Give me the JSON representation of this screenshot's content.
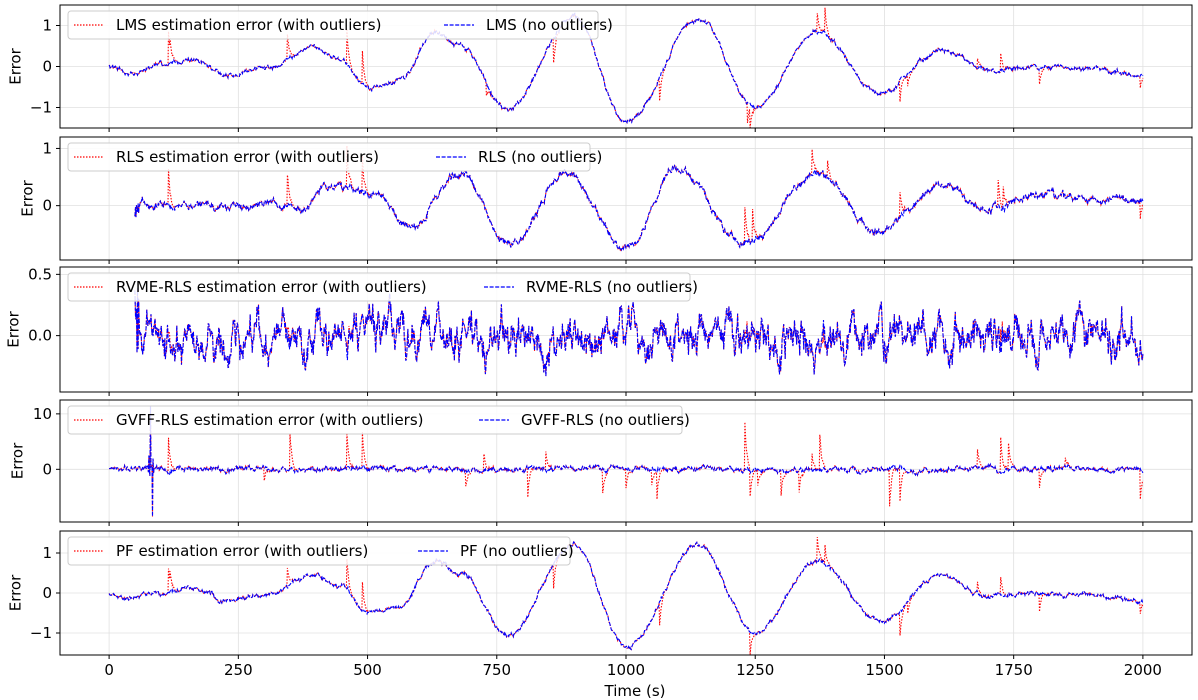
{
  "chart_data": [
    {
      "type": "line",
      "ylabel": "Error",
      "xlim": [
        -95,
        2095
      ],
      "ylim": [
        -1.5,
        1.5
      ],
      "yticks": [
        -1,
        0,
        1
      ],
      "ytick_labels": [
        "−1",
        "0",
        "1"
      ],
      "start": 0,
      "legend": "upper-left",
      "legend_layout": "two-column",
      "series": [
        {
          "name": "LMS estimation error (with outliers)",
          "color": "#ff0000",
          "style": "dotted"
        },
        {
          "name": "LMS (no outliers)",
          "color": "#0000ff",
          "style": "dashed"
        }
      ],
      "signal_keypoints": [
        [
          0,
          0
        ],
        [
          40,
          -0.15
        ],
        [
          100,
          0.05
        ],
        [
          160,
          0.15
        ],
        [
          230,
          -0.2
        ],
        [
          300,
          -0.05
        ],
        [
          400,
          0.45
        ],
        [
          450,
          0.15
        ],
        [
          500,
          -0.5
        ],
        [
          560,
          -0.35
        ],
        [
          630,
          0.8
        ],
        [
          680,
          0.5
        ],
        [
          770,
          -1.05
        ],
        [
          900,
          1.2
        ],
        [
          1000,
          -1.35
        ],
        [
          1140,
          1.15
        ],
        [
          1250,
          -1.0
        ],
        [
          1370,
          0.85
        ],
        [
          1490,
          -0.65
        ],
        [
          1610,
          0.4
        ],
        [
          1700,
          -0.1
        ],
        [
          1800,
          0.0
        ],
        [
          1900,
          -0.05
        ],
        [
          2000,
          -0.2
        ]
      ],
      "noise_amplitude": 0.05,
      "outliers": [
        [
          115,
          0.8
        ],
        [
          118,
          0.6
        ],
        [
          345,
          0.6
        ],
        [
          460,
          0.85
        ],
        [
          490,
          0.8
        ],
        [
          730,
          -0.3
        ],
        [
          860,
          -0.6
        ],
        [
          1065,
          -0.6
        ],
        [
          1235,
          -0.5
        ],
        [
          1240,
          -0.6
        ],
        [
          1370,
          0.5
        ],
        [
          1385,
          0.6
        ],
        [
          1530,
          -0.55
        ],
        [
          1545,
          -0.3
        ],
        [
          1680,
          0.25
        ],
        [
          1725,
          0.4
        ],
        [
          1800,
          -0.4
        ],
        [
          1995,
          -0.3
        ]
      ]
    },
    {
      "type": "line",
      "ylabel": "Error",
      "xlim": [
        -95,
        2095
      ],
      "ylim": [
        -0.95,
        1.2
      ],
      "yticks": [
        0,
        1
      ],
      "ytick_labels": [
        "0",
        "1"
      ],
      "start": 50,
      "legend": "upper-left",
      "legend_layout": "two-column",
      "series": [
        {
          "name": "RLS estimation error (with outliers)",
          "color": "#ff0000",
          "style": "dotted"
        },
        {
          "name": "RLS (no outliers)",
          "color": "#0000ff",
          "style": "dashed"
        }
      ],
      "signal_keypoints": [
        [
          50,
          -0.1
        ],
        [
          70,
          0.1
        ],
        [
          100,
          0.0
        ],
        [
          160,
          0.0
        ],
        [
          250,
          -0.05
        ],
        [
          300,
          0.05
        ],
        [
          370,
          -0.1
        ],
        [
          420,
          0.35
        ],
        [
          520,
          0.2
        ],
        [
          580,
          -0.4
        ],
        [
          680,
          0.55
        ],
        [
          780,
          -0.7
        ],
        [
          880,
          0.6
        ],
        [
          1000,
          -0.75
        ],
        [
          1100,
          0.65
        ],
        [
          1230,
          -0.65
        ],
        [
          1370,
          0.55
        ],
        [
          1490,
          -0.45
        ],
        [
          1610,
          0.35
        ],
        [
          1700,
          -0.05
        ],
        [
          1800,
          0.2
        ],
        [
          1900,
          0.1
        ],
        [
          2000,
          0.1
        ]
      ],
      "noise_amplitude": 0.06,
      "outliers": [
        [
          115,
          0.6
        ],
        [
          345,
          0.55
        ],
        [
          460,
          0.7
        ],
        [
          490,
          0.6
        ],
        [
          1230,
          0.6
        ],
        [
          1245,
          0.55
        ],
        [
          1360,
          0.45
        ],
        [
          1390,
          0.3
        ],
        [
          1530,
          0.45
        ],
        [
          1720,
          0.45
        ],
        [
          1730,
          0.4
        ],
        [
          1995,
          -0.3
        ]
      ]
    },
    {
      "type": "line",
      "ylabel": "Error",
      "xlim": [
        -95,
        2095
      ],
      "ylim": [
        -0.46,
        0.56
      ],
      "yticks": [
        0.0,
        0.5
      ],
      "ytick_labels": [
        "0.0",
        "0.5"
      ],
      "start": 50,
      "legend": "upper-left",
      "legend_layout": "two-column",
      "series": [
        {
          "name": "RVME-RLS estimation error (with outliers)",
          "color": "#ff0000",
          "style": "dotted"
        },
        {
          "name": "RVME-RLS (no outliers)",
          "color": "#0000ff",
          "style": "dashed"
        }
      ],
      "signal_keypoints": [
        [
          50,
          0
        ],
        [
          2000,
          0
        ]
      ],
      "noise_amplitude": 0.14,
      "outliers": [
        [
          115,
          0.08
        ],
        [
          345,
          0.1
        ],
        [
          460,
          0.1
        ],
        [
          1230,
          0.1
        ],
        [
          1380,
          -0.1
        ],
        [
          1725,
          0.1
        ]
      ]
    },
    {
      "type": "line",
      "ylabel": "Error",
      "xlim": [
        -95,
        2095
      ],
      "ylim": [
        -9.5,
        12.5
      ],
      "yticks": [
        0,
        10
      ],
      "ytick_labels": [
        "0",
        "10"
      ],
      "start": 0,
      "legend": "upper-left",
      "legend_layout": "two-column",
      "series": [
        {
          "name": "GVFF-RLS estimation error (with outliers)",
          "color": "#ff0000",
          "style": "dotted"
        },
        {
          "name": "GVFF-RLS (no outliers)",
          "color": "#0000ff",
          "style": "dashed"
        }
      ],
      "signal_keypoints": [
        [
          0,
          0
        ],
        [
          2000,
          0
        ]
      ],
      "noise_amplitude": 0.4,
      "transient": [
        [
          80,
          11.5
        ],
        [
          84,
          -8.5
        ]
      ],
      "outliers": [
        [
          115,
          6.5
        ],
        [
          300,
          -2.5
        ],
        [
          350,
          6.5
        ],
        [
          460,
          6.3
        ],
        [
          490,
          6.2
        ],
        [
          690,
          -3.0
        ],
        [
          725,
          3.0
        ],
        [
          810,
          -5.0
        ],
        [
          845,
          3.5
        ],
        [
          955,
          -4.5
        ],
        [
          1000,
          -3.5
        ],
        [
          1050,
          -3.0
        ],
        [
          1060,
          -5.0
        ],
        [
          1230,
          8.5
        ],
        [
          1240,
          -4.5
        ],
        [
          1255,
          -3.0
        ],
        [
          1300,
          -4.5
        ],
        [
          1335,
          -4.0
        ],
        [
          1360,
          3.0
        ],
        [
          1375,
          6.5
        ],
        [
          1510,
          -7.0
        ],
        [
          1530,
          -6.5
        ],
        [
          1680,
          3.5
        ],
        [
          1725,
          6.5
        ],
        [
          1740,
          5.0
        ],
        [
          1800,
          -3.5
        ],
        [
          1850,
          1.5
        ],
        [
          1995,
          -5.5
        ]
      ]
    },
    {
      "type": "line",
      "ylabel": "Error",
      "xlabel": "Time (s)",
      "xlim": [
        -95,
        2095
      ],
      "ylim": [
        -1.55,
        1.55
      ],
      "yticks": [
        -1,
        0,
        1
      ],
      "ytick_labels": [
        "−1",
        "0",
        "1"
      ],
      "xticks": [
        0,
        250,
        500,
        750,
        1000,
        1250,
        1500,
        1750,
        2000
      ],
      "xtick_labels": [
        "0",
        "250",
        "500",
        "750",
        "1000",
        "1250",
        "1500",
        "1750",
        "2000"
      ],
      "start": 0,
      "legend": "upper-left",
      "legend_layout": "two-column",
      "series": [
        {
          "name": "PF estimation error (with outliers)",
          "color": "#ff0000",
          "style": "dotted"
        },
        {
          "name": "PF (no outliers)",
          "color": "#0000ff",
          "style": "dashed"
        }
      ],
      "signal_keypoints": [
        [
          0,
          0
        ],
        [
          40,
          -0.15
        ],
        [
          100,
          0.05
        ],
        [
          160,
          0.15
        ],
        [
          230,
          -0.2
        ],
        [
          300,
          -0.05
        ],
        [
          400,
          0.45
        ],
        [
          450,
          0.15
        ],
        [
          500,
          -0.5
        ],
        [
          560,
          -0.35
        ],
        [
          630,
          0.8
        ],
        [
          680,
          0.5
        ],
        [
          770,
          -1.05
        ],
        [
          900,
          1.2
        ],
        [
          1000,
          -1.35
        ],
        [
          1140,
          1.2
        ],
        [
          1250,
          -1.0
        ],
        [
          1370,
          0.8
        ],
        [
          1490,
          -0.7
        ],
        [
          1610,
          0.4
        ],
        [
          1700,
          -0.1
        ],
        [
          1800,
          0.0
        ],
        [
          1900,
          -0.05
        ],
        [
          2000,
          -0.2
        ]
      ],
      "noise_amplitude": 0.05,
      "outliers": [
        [
          115,
          0.6
        ],
        [
          118,
          0.5
        ],
        [
          345,
          0.5
        ],
        [
          460,
          0.75
        ],
        [
          490,
          0.7
        ],
        [
          860,
          -0.6
        ],
        [
          1065,
          -0.6
        ],
        [
          1240,
          -0.55
        ],
        [
          1370,
          0.6
        ],
        [
          1385,
          0.5
        ],
        [
          1530,
          -0.6
        ],
        [
          1545,
          -0.3
        ],
        [
          1680,
          0.25
        ],
        [
          1725,
          0.45
        ],
        [
          1800,
          -0.4
        ],
        [
          1995,
          -0.3
        ]
      ]
    }
  ]
}
